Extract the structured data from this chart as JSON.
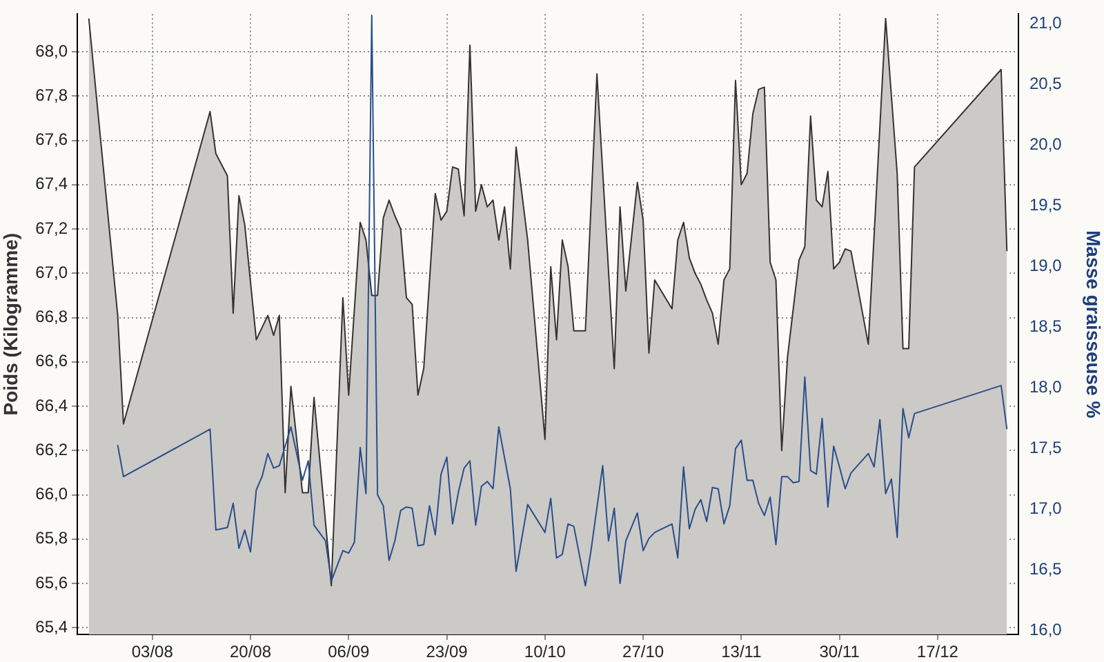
{
  "chart_data": {
    "type": "area",
    "ylabel": "Poids (Kilogramme)",
    "y2label": "Masse graisseuse %",
    "grid": true,
    "legend": false,
    "marker": "none",
    "xlim": [
      "--07-21",
      "--12-31"
    ],
    "xticks": [
      {
        "value": "--08-03",
        "label": "03/08"
      },
      {
        "value": "--08-20",
        "label": "20/08"
      },
      {
        "value": "--09-06",
        "label": "06/09"
      },
      {
        "value": "--09-23",
        "label": "23/09"
      },
      {
        "value": "--10-10",
        "label": "10/10"
      },
      {
        "value": "--10-27",
        "label": "27/10"
      },
      {
        "value": "--11-13",
        "label": "13/11"
      },
      {
        "value": "--11-30",
        "label": "30/11"
      },
      {
        "value": "--12-17",
        "label": "17/12"
      }
    ],
    "ylim": [
      65.37,
      68.17
    ],
    "yticks": [
      {
        "value": 65.4,
        "label": "65,4"
      },
      {
        "value": 65.6,
        "label": "65,6"
      },
      {
        "value": 65.8,
        "label": "65,8"
      },
      {
        "value": 66,
        "label": "66,0"
      },
      {
        "value": 66.2,
        "label": "66,2"
      },
      {
        "value": 66.4,
        "label": "66,4"
      },
      {
        "value": 66.6,
        "label": "66,6"
      },
      {
        "value": 66.8,
        "label": "66,8"
      },
      {
        "value": 67,
        "label": "67,0"
      },
      {
        "value": 67.2,
        "label": "67,2"
      },
      {
        "value": 67.4,
        "label": "67,4"
      },
      {
        "value": 67.6,
        "label": "67,6"
      },
      {
        "value": 67.8,
        "label": "67,8"
      },
      {
        "value": 68,
        "label": "68,0"
      }
    ],
    "y2lim": [
      15.97,
      21.08
    ],
    "y2ticks": [
      {
        "value": 16,
        "label": "16,0"
      },
      {
        "value": 16.5,
        "label": "16,5"
      },
      {
        "value": 17,
        "label": "17,0"
      },
      {
        "value": 17.5,
        "label": "17,5"
      },
      {
        "value": 18,
        "label": "18,0"
      },
      {
        "value": 18.5,
        "label": "18,5"
      },
      {
        "value": 19,
        "label": "19,0"
      },
      {
        "value": 19.5,
        "label": "19,5"
      },
      {
        "value": 20,
        "label": "20,0"
      },
      {
        "value": 20.5,
        "label": "20,5"
      },
      {
        "value": 21,
        "label": "21,0"
      }
    ],
    "series": [
      {
        "color": "#cbcac6",
        "x": [
          "--07-23",
          "--07-28",
          "--07-29",
          "--08-13",
          "--08-14",
          "--08-16",
          "--08-17",
          "--08-18",
          "--08-19",
          "--08-21",
          "--08-23",
          "--08-24",
          "--08-25",
          "--08-26",
          "--08-27",
          "--08-29",
          "--08-30",
          "--08-31",
          "--09-03",
          "--09-05",
          "--09-06",
          "--09-08",
          "--09-09",
          "--09-10",
          "--09-11",
          "--09-12",
          "--09-13",
          "--09-14",
          "--09-15",
          "--09-16",
          "--09-17",
          "--09-18",
          "--09-19",
          "--09-21",
          "--09-22",
          "--09-23",
          "--09-24",
          "--09-25",
          "--09-26",
          "--09-27",
          "--09-28",
          "--09-29",
          "--09-30",
          "--10-01",
          "--10-02",
          "--10-03",
          "--10-04",
          "--10-05",
          "--10-07",
          "--10-10",
          "--10-11",
          "--10-12",
          "--10-13",
          "--10-14",
          "--10-15",
          "--10-17",
          "--10-19",
          "--10-22",
          "--10-23",
          "--10-24",
          "--10-26",
          "--10-27",
          "--10-28",
          "--10-29",
          "--11-01",
          "--11-02",
          "--11-03",
          "--11-04",
          "--11-05",
          "--11-06",
          "--11-07",
          "--11-08",
          "--11-09",
          "--11-10",
          "--11-11",
          "--11-12",
          "--11-13",
          "--11-14",
          "--11-15",
          "--11-16",
          "--11-17",
          "--11-18",
          "--11-19",
          "--11-20",
          "--11-21",
          "--11-23",
          "--11-24",
          "--11-25",
          "--11-26",
          "--11-27",
          "--11-28",
          "--11-29",
          "--11-30",
          "--12-01",
          "--12-02",
          "--12-05",
          "--12-08",
          "--12-10",
          "--12-11",
          "--12-12",
          "--12-13",
          "--12-28",
          "--12-29"
        ],
        "values": [
          68.15,
          66.81,
          66.32,
          67.73,
          67.54,
          67.44,
          66.82,
          67.35,
          67.22,
          66.7,
          66.81,
          66.72,
          66.81,
          66.01,
          66.49,
          66.01,
          66.01,
          66.44,
          65.59,
          66.89,
          66.45,
          67.23,
          67.15,
          66.9,
          66.9,
          67.25,
          67.33,
          67.26,
          67.2,
          66.89,
          66.86,
          66.45,
          66.57,
          67.36,
          67.24,
          67.28,
          67.48,
          67.47,
          67.26,
          68.03,
          67.28,
          67.4,
          67.3,
          67.33,
          67.15,
          67.3,
          67.02,
          67.57,
          67.15,
          66.25,
          67.03,
          66.7,
          67.15,
          67.03,
          66.74,
          66.74,
          67.9,
          66.57,
          67.3,
          66.92,
          67.41,
          67.24,
          66.64,
          66.97,
          66.84,
          67.15,
          67.23,
          67.07,
          67.0,
          66.95,
          66.88,
          66.82,
          66.68,
          66.97,
          67.02,
          67.87,
          67.4,
          67.45,
          67.72,
          67.83,
          67.84,
          67.05,
          66.97,
          66.2,
          66.62,
          67.06,
          67.12,
          67.71,
          67.33,
          67.3,
          67.46,
          67.02,
          67.05,
          67.11,
          67.1,
          66.68,
          68.15,
          67.45,
          66.66,
          66.66,
          67.48,
          67.92,
          67.1
        ]
      },
      {
        "type": "line",
        "axis": "y2",
        "color": "#2b4d8c",
        "x": [
          "--07-28",
          "--07-29",
          "--08-13",
          "--08-14",
          "--08-16",
          "--08-17",
          "--08-18",
          "--08-19",
          "--08-20",
          "--08-21",
          "--08-22",
          "--08-23",
          "--08-24",
          "--08-25",
          "--08-27",
          "--08-29",
          "--08-30",
          "--08-31",
          "--09-02",
          "--09-03",
          "--09-05",
          "--09-06",
          "--09-07",
          "--09-08",
          "--09-09",
          "--09-10",
          "--09-11",
          "--09-12",
          "--09-13",
          "--09-14",
          "--09-15",
          "--09-16",
          "--09-17",
          "--09-18",
          "--09-19",
          "--09-20",
          "--09-21",
          "--09-22",
          "--09-23",
          "--09-24",
          "--09-25",
          "--09-26",
          "--09-27",
          "--09-28",
          "--09-29",
          "--09-30",
          "--10-01",
          "--10-02",
          "--10-04",
          "--10-05",
          "--10-07",
          "--10-10",
          "--10-11",
          "--10-12",
          "--10-13",
          "--10-14",
          "--10-15",
          "--10-17",
          "--10-18",
          "--10-20",
          "--10-21",
          "--10-22",
          "--10-23",
          "--10-24",
          "--10-26",
          "--10-27",
          "--10-28",
          "--10-29",
          "--11-01",
          "--11-02",
          "--11-03",
          "--11-04",
          "--11-05",
          "--11-06",
          "--11-07",
          "--11-08",
          "--11-09",
          "--11-10",
          "--11-11",
          "--11-12",
          "--11-13",
          "--11-14",
          "--11-15",
          "--11-16",
          "--11-17",
          "--11-18",
          "--11-19",
          "--11-20",
          "--11-21",
          "--11-22",
          "--11-23",
          "--11-24",
          "--11-25",
          "--11-26",
          "--11-27",
          "--11-28",
          "--11-29",
          "--11-30",
          "--12-01",
          "--12-02",
          "--12-05",
          "--12-06",
          "--12-07",
          "--12-08",
          "--12-09",
          "--12-10",
          "--12-11",
          "--12-12",
          "--12-13",
          "--12-28",
          "--12-29"
        ],
        "values": [
          17.53,
          17.27,
          17.66,
          16.83,
          16.85,
          17.05,
          16.68,
          16.83,
          16.65,
          17.16,
          17.27,
          17.46,
          17.34,
          17.36,
          17.68,
          17.24,
          17.4,
          16.87,
          16.74,
          16.41,
          16.66,
          16.64,
          16.73,
          17.51,
          17.13,
          21.07,
          17.12,
          17.03,
          16.58,
          16.74,
          16.99,
          17.02,
          17.01,
          16.7,
          16.71,
          17.03,
          16.79,
          17.29,
          17.43,
          16.88,
          17.14,
          17.34,
          17.4,
          16.87,
          17.19,
          17.23,
          17.17,
          17.68,
          17.17,
          16.49,
          17.04,
          16.81,
          17.09,
          16.6,
          16.63,
          16.88,
          16.86,
          16.37,
          16.67,
          17.36,
          16.74,
          17.01,
          16.39,
          16.74,
          16.97,
          16.66,
          16.76,
          16.81,
          16.88,
          16.6,
          17.35,
          16.84,
          17.0,
          17.08,
          16.9,
          17.18,
          17.17,
          16.88,
          17.03,
          17.5,
          17.57,
          17.24,
          17.24,
          17.05,
          16.95,
          17.1,
          16.71,
          17.27,
          17.27,
          17.22,
          17.23,
          18.09,
          17.32,
          17.29,
          17.75,
          17.02,
          17.52,
          17.35,
          17.17,
          17.3,
          17.46,
          17.35,
          17.74,
          17.13,
          17.25,
          16.77,
          17.83,
          17.59,
          17.79,
          18.02,
          17.66
        ]
      }
    ]
  }
}
